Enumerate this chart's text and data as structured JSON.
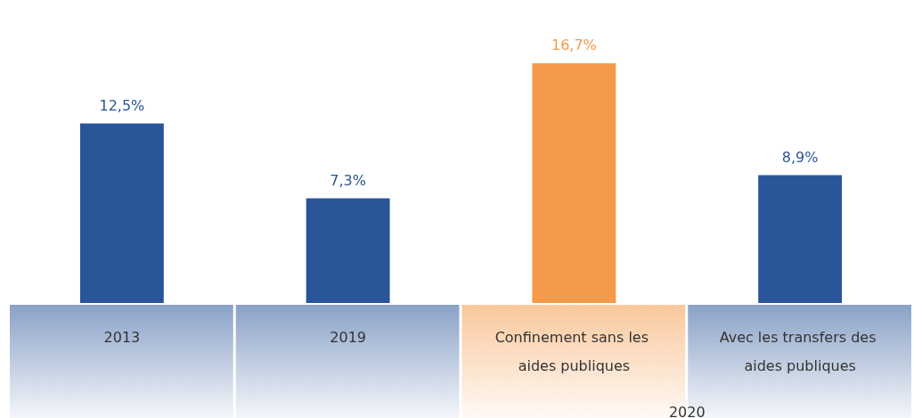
{
  "chart_data": {
    "type": "bar",
    "categories": [
      "2013",
      "2019",
      "Confinement sans les aides publiques",
      "Avec les transfers des aides publiques"
    ],
    "values": [
      12.5,
      7.3,
      16.7,
      8.9
    ],
    "colors": [
      "#2a5599",
      "#2a5599",
      "#f59a4a",
      "#2a5599"
    ],
    "value_labels": [
      "12,5%",
      "7,3%",
      "16,7%",
      "8,9%"
    ],
    "annotations": [
      "2020"
    ]
  }
}
